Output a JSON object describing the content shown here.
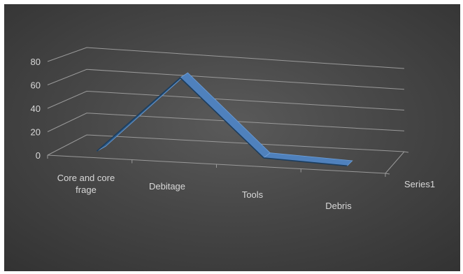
{
  "chart_data": {
    "type": "line",
    "style": "3d-ribbon",
    "categories": [
      "Core and core frage",
      "Debitage",
      "Tools",
      "Debris"
    ],
    "series": [
      {
        "name": "Series1",
        "values": [
          2,
          70,
          4,
          1
        ],
        "color": "#4f81bd"
      }
    ],
    "y_axis": {
      "ticks": [
        0,
        20,
        40,
        60,
        80
      ],
      "ylim": [
        0,
        80
      ]
    },
    "depth_axis": {
      "labels": [
        "Series1"
      ]
    },
    "grid": true,
    "background": "#474747",
    "text_color": "#d9d9d9",
    "gridline_color": "#9a9a9a"
  }
}
